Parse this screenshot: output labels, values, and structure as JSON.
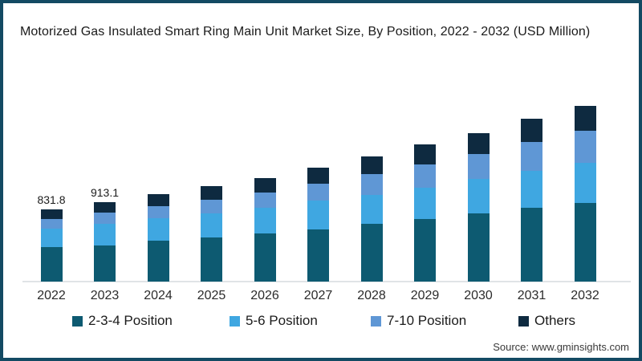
{
  "title": "Motorized Gas Insulated Smart Ring Main Unit Market Size, By Position, 2022 - 2032 (USD Million)",
  "source": "Source: www.gminsights.com",
  "frame": {
    "border_color": "#134a63",
    "background": "#ffffff"
  },
  "chart_data": {
    "type": "bar",
    "stacked": true,
    "title": "Motorized Gas Insulated Smart Ring Main Unit Market Size, By Position, 2022 - 2032 (USD Million)",
    "unit": "USD Million",
    "categories": [
      "2022",
      "2023",
      "2024",
      "2025",
      "2026",
      "2027",
      "2028",
      "2029",
      "2030",
      "2031",
      "2032"
    ],
    "series": [
      {
        "name": "2-3-4 Position",
        "color": "#0d5a71",
        "values": [
          400,
          420,
          468,
          510,
          552,
          605,
          662,
          718,
          785,
          850,
          910
        ]
      },
      {
        "name": "5-6 Position",
        "color": "#3fa7e1",
        "values": [
          206,
          247,
          262,
          278,
          296,
          330,
          340,
          366,
          400,
          430,
          455
        ]
      },
      {
        "name": "7-10 Position",
        "color": "#5f97d5",
        "values": [
          115,
          124,
          139,
          158,
          180,
          195,
          237,
          268,
          284,
          330,
          375
        ]
      },
      {
        "name": "Others",
        "color": "#0e2a40",
        "values": [
          110.8,
          122.1,
          135,
          150,
          166,
          183,
          203,
          226,
          240,
          262,
          285
        ]
      }
    ],
    "totals": [
      831.8,
      913.1,
      1004,
      1096,
      1194,
      1313,
      1442,
      1578,
      1709,
      1872,
      2025
    ],
    "data_labels": {
      "2022": "831.8",
      "2023": "913.1"
    },
    "legend_position": "bottom",
    "grid": false,
    "axis_line_color": "#e0e4e6",
    "ylim": [
      0,
      2300
    ]
  }
}
